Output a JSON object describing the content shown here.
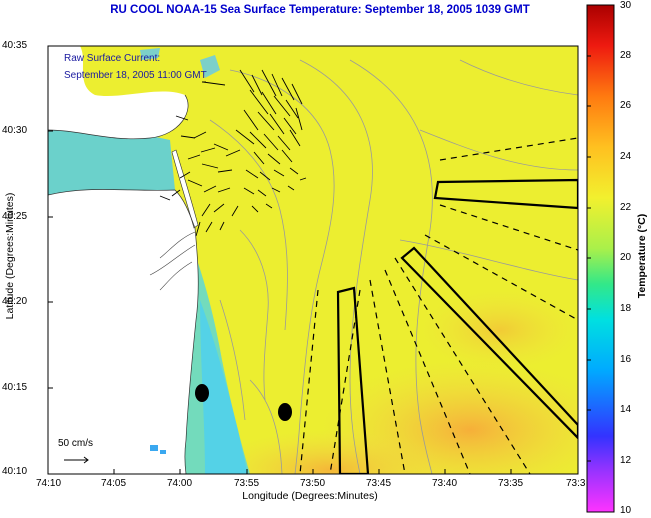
{
  "title": "RU COOL  NOAA-15  Sea Surface Temperature:  September 18, 2005 1039 GMT",
  "annotation": {
    "line1": "Raw Surface Current:",
    "line2": "September 18, 2005 11:00 GMT"
  },
  "scale_vector_label": "50 cm/s",
  "axes": {
    "xlabel": "Longitude (Degrees:Minutes)",
    "ylabel": "Latitude (Degrees:Minutes)",
    "x_ticks": [
      "74:10",
      "74:05",
      "74:00",
      "73:55",
      "73:50",
      "73:45",
      "73:40",
      "73:35",
      "73:3"
    ],
    "y_ticks": [
      "40:35",
      "40:30",
      "40:25",
      "40:20",
      "40:15",
      "40:10"
    ]
  },
  "colorbar": {
    "label": "Temperature (°C)",
    "ticks": [
      "30",
      "28",
      "26",
      "24",
      "22",
      "20",
      "18",
      "16",
      "14",
      "12",
      "10"
    ],
    "range": [
      10,
      30
    ]
  },
  "colors": {
    "title": "#0000cc",
    "warm_water": "#eaee2e",
    "cool_water": "#4fd0ee",
    "land": "#ffffff",
    "hot_patch": "#f6b040"
  }
}
